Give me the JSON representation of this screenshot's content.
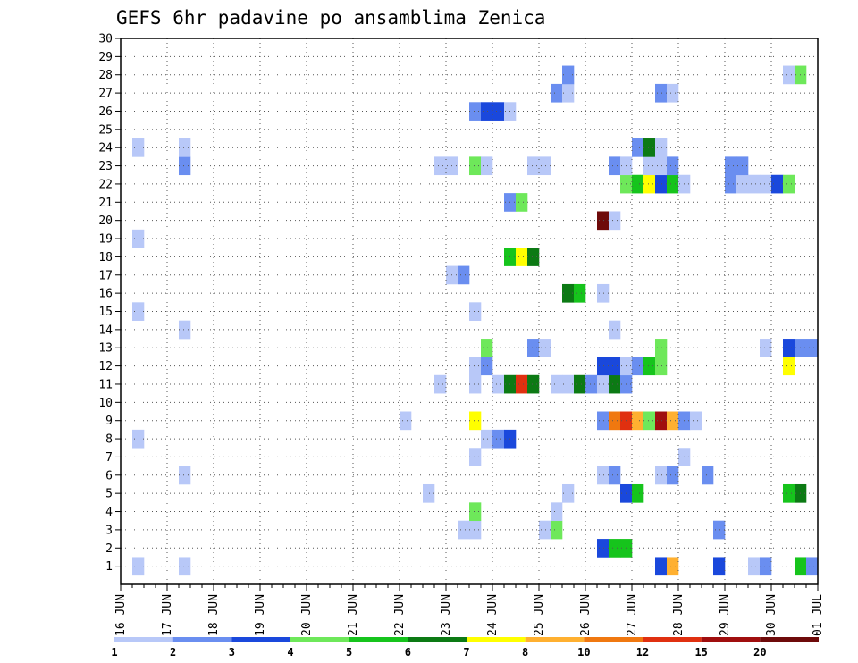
{
  "chart_data": {
    "type": "heatmap",
    "title": "GEFS 6hr padavine po ansamblima Zenica",
    "x_ticks": [
      "16 JUN",
      "17 JUN",
      "18 JUN",
      "19 JUN",
      "20 JUN",
      "21 JUN",
      "22 JUN",
      "23 JUN",
      "24 JUN",
      "25 JUN",
      "26 JUN",
      "27 JUN",
      "28 JUN",
      "29 JUN",
      "30 JUN",
      "01 JUL"
    ],
    "x_range_steps": [
      0,
      60
    ],
    "steps_per_day": 4,
    "y_ticks": [
      "1",
      "2",
      "3",
      "4",
      "5",
      "6",
      "7",
      "8",
      "9",
      "10",
      "11",
      "12",
      "13",
      "14",
      "15",
      "16",
      "17",
      "18",
      "19",
      "20",
      "21",
      "22",
      "23",
      "24",
      "25",
      "26",
      "27",
      "28",
      "29",
      "30"
    ],
    "y_range": [
      0,
      30
    ],
    "grid": "dotted",
    "colorbar": {
      "labels": [
        "1",
        "2",
        "3",
        "4",
        "5",
        "6",
        "7",
        "8",
        "10",
        "12",
        "15",
        "20"
      ],
      "colors": [
        "#b8c8f8",
        "#6a8ef0",
        "#1a48dc",
        "#6ee85a",
        "#16c41c",
        "#0c7a14",
        "#ffff00",
        "#ffb030",
        "#f07810",
        "#e03010",
        "#a00e0e",
        "#6e0a0a"
      ]
    },
    "cells": [
      {
        "step": 2,
        "member": 1,
        "level": 1
      },
      {
        "step": 6,
        "member": 1,
        "level": 1
      },
      {
        "step": 47,
        "member": 1,
        "level": 3
      },
      {
        "step": 48,
        "member": 1,
        "level": 8
      },
      {
        "step": 52,
        "member": 1,
        "level": 3
      },
      {
        "step": 55,
        "member": 1,
        "level": 1
      },
      {
        "step": 56,
        "member": 1,
        "level": 2
      },
      {
        "step": 59,
        "member": 1,
        "level": 5
      },
      {
        "step": 60,
        "member": 1,
        "level": 2
      },
      {
        "step": 42,
        "member": 2,
        "level": 3
      },
      {
        "step": 43,
        "member": 2,
        "level": 5
      },
      {
        "step": 44,
        "member": 2,
        "level": 5
      },
      {
        "step": 30,
        "member": 3,
        "level": 1
      },
      {
        "step": 31,
        "member": 3,
        "level": 1
      },
      {
        "step": 37,
        "member": 3,
        "level": 1
      },
      {
        "step": 38,
        "member": 3,
        "level": 4
      },
      {
        "step": 52,
        "member": 3,
        "level": 2
      },
      {
        "step": 31,
        "member": 4,
        "level": 4
      },
      {
        "step": 38,
        "member": 4,
        "level": 1
      },
      {
        "step": 27,
        "member": 5,
        "level": 1
      },
      {
        "step": 39,
        "member": 5,
        "level": 1
      },
      {
        "step": 44,
        "member": 5,
        "level": 3
      },
      {
        "step": 45,
        "member": 5,
        "level": 5
      },
      {
        "step": 58,
        "member": 5,
        "level": 5
      },
      {
        "step": 59,
        "member": 5,
        "level": 6
      },
      {
        "step": 6,
        "member": 6,
        "level": 1
      },
      {
        "step": 42,
        "member": 6,
        "level": 1
      },
      {
        "step": 43,
        "member": 6,
        "level": 2
      },
      {
        "step": 47,
        "member": 6,
        "level": 1
      },
      {
        "step": 48,
        "member": 6,
        "level": 2
      },
      {
        "step": 51,
        "member": 6,
        "level": 2
      },
      {
        "step": 31,
        "member": 7,
        "level": 1
      },
      {
        "step": 49,
        "member": 7,
        "level": 1
      },
      {
        "step": 2,
        "member": 8,
        "level": 1
      },
      {
        "step": 32,
        "member": 8,
        "level": 1
      },
      {
        "step": 33,
        "member": 8,
        "level": 2
      },
      {
        "step": 34,
        "member": 8,
        "level": 3
      },
      {
        "step": 25,
        "member": 9,
        "level": 1
      },
      {
        "step": 31,
        "member": 9,
        "level": 7
      },
      {
        "step": 42,
        "member": 9,
        "level": 2
      },
      {
        "step": 43,
        "member": 9,
        "level": 9
      },
      {
        "step": 44,
        "member": 9,
        "level": 10
      },
      {
        "step": 45,
        "member": 9,
        "level": 8
      },
      {
        "step": 46,
        "member": 9,
        "level": 4
      },
      {
        "step": 47,
        "member": 9,
        "level": 11
      },
      {
        "step": 48,
        "member": 9,
        "level": 8
      },
      {
        "step": 49,
        "member": 9,
        "level": 2
      },
      {
        "step": 50,
        "member": 9,
        "level": 1
      },
      {
        "step": 28,
        "member": 11,
        "level": 1
      },
      {
        "step": 31,
        "member": 11,
        "level": 1
      },
      {
        "step": 33,
        "member": 11,
        "level": 1
      },
      {
        "step": 34,
        "member": 11,
        "level": 6
      },
      {
        "step": 35,
        "member": 11,
        "level": 10
      },
      {
        "step": 36,
        "member": 11,
        "level": 6
      },
      {
        "step": 38,
        "member": 11,
        "level": 1
      },
      {
        "step": 39,
        "member": 11,
        "level": 1
      },
      {
        "step": 40,
        "member": 11,
        "level": 6
      },
      {
        "step": 41,
        "member": 11,
        "level": 2
      },
      {
        "step": 42,
        "member": 11,
        "level": 1
      },
      {
        "step": 43,
        "member": 11,
        "level": 6
      },
      {
        "step": 44,
        "member": 11,
        "level": 2
      },
      {
        "step": 31,
        "member": 12,
        "level": 1
      },
      {
        "step": 32,
        "member": 12,
        "level": 2
      },
      {
        "step": 42,
        "member": 12,
        "level": 3
      },
      {
        "step": 43,
        "member": 12,
        "level": 3
      },
      {
        "step": 44,
        "member": 12,
        "level": 1
      },
      {
        "step": 45,
        "member": 12,
        "level": 2
      },
      {
        "step": 46,
        "member": 12,
        "level": 5
      },
      {
        "step": 47,
        "member": 12,
        "level": 4
      },
      {
        "step": 58,
        "member": 12,
        "level": 7
      },
      {
        "step": 32,
        "member": 13,
        "level": 4
      },
      {
        "step": 36,
        "member": 13,
        "level": 2
      },
      {
        "step": 37,
        "member": 13,
        "level": 1
      },
      {
        "step": 47,
        "member": 13,
        "level": 4
      },
      {
        "step": 56,
        "member": 13,
        "level": 1
      },
      {
        "step": 58,
        "member": 13,
        "level": 3
      },
      {
        "step": 59,
        "member": 13,
        "level": 2
      },
      {
        "step": 60,
        "member": 13,
        "level": 2
      },
      {
        "step": 6,
        "member": 14,
        "level": 1
      },
      {
        "step": 43,
        "member": 14,
        "level": 1
      },
      {
        "step": 2,
        "member": 15,
        "level": 1
      },
      {
        "step": 31,
        "member": 15,
        "level": 1
      },
      {
        "step": 39,
        "member": 16,
        "level": 6
      },
      {
        "step": 40,
        "member": 16,
        "level": 5
      },
      {
        "step": 42,
        "member": 16,
        "level": 1
      },
      {
        "step": 29,
        "member": 17,
        "level": 1
      },
      {
        "step": 30,
        "member": 17,
        "level": 2
      },
      {
        "step": 34,
        "member": 18,
        "level": 5
      },
      {
        "step": 35,
        "member": 18,
        "level": 7
      },
      {
        "step": 36,
        "member": 18,
        "level": 6
      },
      {
        "step": 2,
        "member": 19,
        "level": 1
      },
      {
        "step": 42,
        "member": 20,
        "level": 12
      },
      {
        "step": 43,
        "member": 20,
        "level": 1
      },
      {
        "step": 34,
        "member": 21,
        "level": 2
      },
      {
        "step": 35,
        "member": 21,
        "level": 4
      },
      {
        "step": 44,
        "member": 22,
        "level": 4
      },
      {
        "step": 45,
        "member": 22,
        "level": 5
      },
      {
        "step": 46,
        "member": 22,
        "level": 7
      },
      {
        "step": 47,
        "member": 22,
        "level": 3
      },
      {
        "step": 48,
        "member": 22,
        "level": 5
      },
      {
        "step": 49,
        "member": 22,
        "level": 1
      },
      {
        "step": 53,
        "member": 22,
        "level": 2
      },
      {
        "step": 54,
        "member": 22,
        "level": 1
      },
      {
        "step": 55,
        "member": 22,
        "level": 1
      },
      {
        "step": 56,
        "member": 22,
        "level": 1
      },
      {
        "step": 57,
        "member": 22,
        "level": 3
      },
      {
        "step": 58,
        "member": 22,
        "level": 4
      },
      {
        "step": 6,
        "member": 23,
        "level": 2
      },
      {
        "step": 28,
        "member": 23,
        "level": 1
      },
      {
        "step": 29,
        "member": 23,
        "level": 1
      },
      {
        "step": 31,
        "member": 23,
        "level": 4
      },
      {
        "step": 32,
        "member": 23,
        "level": 1
      },
      {
        "step": 36,
        "member": 23,
        "level": 1
      },
      {
        "step": 37,
        "member": 23,
        "level": 1
      },
      {
        "step": 43,
        "member": 23,
        "level": 2
      },
      {
        "step": 44,
        "member": 23,
        "level": 1
      },
      {
        "step": 46,
        "member": 23,
        "level": 1
      },
      {
        "step": 47,
        "member": 23,
        "level": 1
      },
      {
        "step": 48,
        "member": 23,
        "level": 2
      },
      {
        "step": 53,
        "member": 23,
        "level": 2
      },
      {
        "step": 54,
        "member": 23,
        "level": 2
      },
      {
        "step": 2,
        "member": 24,
        "level": 1
      },
      {
        "step": 6,
        "member": 24,
        "level": 1
      },
      {
        "step": 45,
        "member": 24,
        "level": 2
      },
      {
        "step": 46,
        "member": 24,
        "level": 6
      },
      {
        "step": 47,
        "member": 24,
        "level": 1
      },
      {
        "step": 31,
        "member": 26,
        "level": 2
      },
      {
        "step": 32,
        "member": 26,
        "level": 3
      },
      {
        "step": 33,
        "member": 26,
        "level": 3
      },
      {
        "step": 34,
        "member": 26,
        "level": 1
      },
      {
        "step": 38,
        "member": 27,
        "level": 2
      },
      {
        "step": 39,
        "member": 27,
        "level": 1
      },
      {
        "step": 47,
        "member": 27,
        "level": 2
      },
      {
        "step": 48,
        "member": 27,
        "level": 1
      },
      {
        "step": 39,
        "member": 28,
        "level": 2
      },
      {
        "step": 58,
        "member": 28,
        "level": 1
      },
      {
        "step": 59,
        "member": 28,
        "level": 4
      }
    ]
  }
}
